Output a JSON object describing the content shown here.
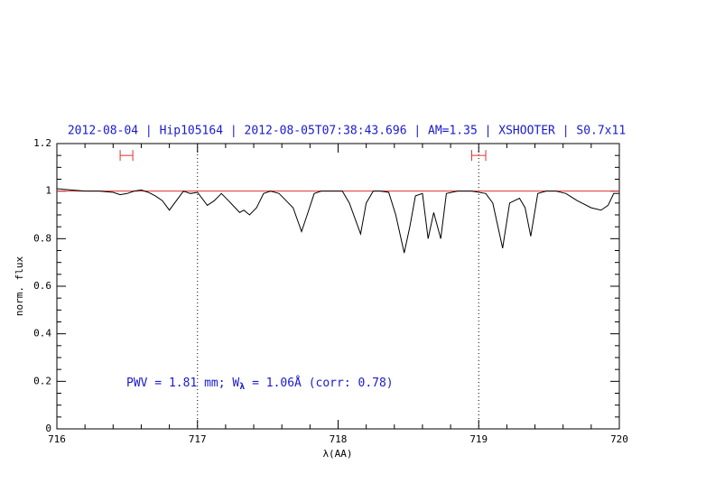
{
  "chart_data": {
    "type": "line",
    "title": "2012-08-04 | Hip105164 | 2012-08-05T07:38:43.696 | AM=1.35 | XSHOOTER | S0.7x11",
    "xlabel": "λ(AA)",
    "ylabel": "norm. flux",
    "annotation": [
      "PWV = 1.81 mm; W",
      "λ",
      " = 1.06Å (corr: 0.78)"
    ],
    "xlim": [
      716,
      720
    ],
    "ylim": [
      0,
      1.2
    ],
    "xticks": [
      716,
      717,
      718,
      719,
      720
    ],
    "yticks": [
      0,
      0.2,
      0.4,
      0.6,
      0.8,
      1,
      1.2
    ],
    "xminorticks": [
      716.2,
      716.4,
      716.6,
      716.8,
      717.2,
      717.4,
      717.6,
      717.8,
      718.2,
      718.4,
      718.6,
      718.8,
      719.2,
      719.4,
      719.6,
      719.8
    ],
    "yminorticks": [
      0.05,
      0.1,
      0.15,
      0.25,
      0.3,
      0.35,
      0.45,
      0.5,
      0.55,
      0.65,
      0.7,
      0.75,
      0.85,
      0.9,
      0.95,
      1.05,
      1.1,
      1.15
    ],
    "hline": 1,
    "hline_color": "#e03030",
    "vlines": [
      717,
      719
    ],
    "ranges": [
      {
        "x": [
          716.45,
          716.54
        ],
        "y": 1.15
      },
      {
        "x": [
          718.95,
          719.05
        ],
        "y": 1.15
      }
    ],
    "range_color": "#e03030",
    "series": [
      {
        "color": "#000000",
        "x": [
          716.0,
          716.1,
          716.2,
          716.3,
          716.4,
          716.45,
          716.5,
          716.55,
          716.6,
          716.65,
          716.7,
          716.75,
          716.8,
          716.85,
          716.9,
          716.95,
          717.0,
          717.07,
          717.12,
          717.17,
          717.22,
          717.3,
          717.33,
          717.37,
          717.42,
          717.47,
          717.52,
          717.58,
          717.63,
          717.68,
          717.74,
          717.78,
          717.83,
          717.88,
          717.95,
          718.03,
          718.08,
          718.16,
          718.2,
          718.25,
          718.3,
          718.36,
          718.41,
          718.47,
          718.51,
          718.55,
          718.6,
          718.64,
          718.68,
          718.73,
          718.77,
          718.85,
          718.95,
          719.05,
          719.1,
          719.17,
          719.22,
          719.29,
          719.33,
          719.37,
          719.42,
          719.48,
          719.55,
          719.62,
          719.7,
          719.8,
          719.87,
          719.92,
          719.96,
          720.0
        ],
        "values": [
          1.01,
          1.005,
          1.0,
          1.0,
          0.995,
          0.985,
          0.99,
          1.0,
          1.005,
          0.995,
          0.98,
          0.96,
          0.92,
          0.96,
          1.0,
          0.99,
          0.995,
          0.94,
          0.96,
          0.99,
          0.96,
          0.91,
          0.92,
          0.9,
          0.93,
          0.99,
          1.0,
          0.99,
          0.96,
          0.93,
          0.83,
          0.9,
          0.99,
          1.0,
          1.0,
          1.0,
          0.95,
          0.82,
          0.95,
          1.0,
          1.0,
          0.995,
          0.9,
          0.74,
          0.85,
          0.98,
          0.99,
          0.8,
          0.91,
          0.8,
          0.99,
          1.0,
          1.0,
          0.99,
          0.95,
          0.76,
          0.95,
          0.97,
          0.93,
          0.81,
          0.99,
          1.0,
          1.0,
          0.99,
          0.96,
          0.93,
          0.92,
          0.94,
          0.99,
          0.99
        ]
      }
    ]
  }
}
